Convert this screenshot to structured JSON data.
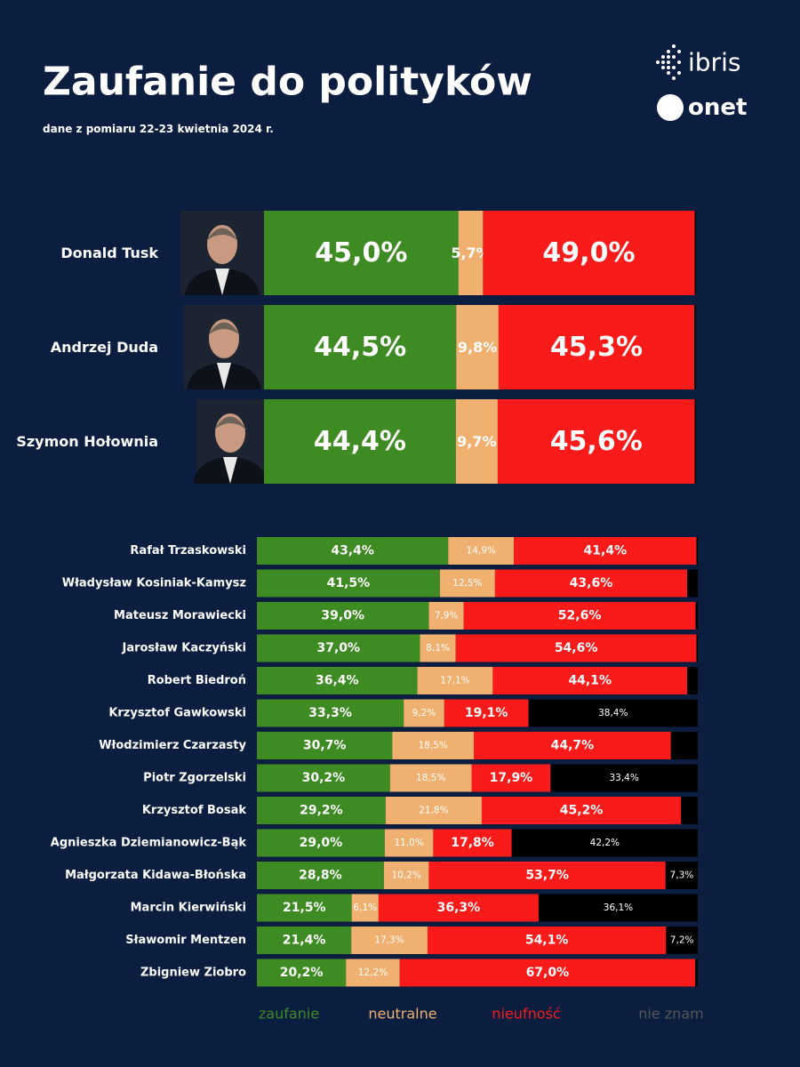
{
  "logos": [
    "ibris",
    "onet"
  ],
  "chart_data": {
    "type": "stacked-bar-horizontal",
    "title": "Zaufanie do polityków",
    "subtitle": "dane z pomiaru 22-23 kwietnia 2024 r.",
    "xlim": [
      0,
      100
    ],
    "categories": [
      "Donald Tusk",
      "Andrzej Duda",
      "Szymon Hołownia",
      "Rafał Trzaskowski",
      "Władysław Kosiniak-Kamysz",
      "Mateusz Morawiecki",
      "Jarosław Kaczyński",
      "Robert Biedroń",
      "Krzysztof Gawkowski",
      "Włodzimierz Czarzasty",
      "Piotr Zgorzelski",
      "Krzysztof Bosak",
      "Agnieszka Dziemianowicz-Bąk",
      "Małgorzata Kidawa-Błońska",
      "Marcin Kierwiński",
      "Sławomir Mentzen",
      "Zbigniew Ziobro"
    ],
    "series": [
      {
        "name": "zaufanie",
        "color": "#3e8a23",
        "text_color": "#3e8a23",
        "values": [
          45.0,
          44.5,
          44.4,
          43.4,
          41.5,
          39.0,
          37.0,
          36.4,
          33.3,
          30.7,
          30.2,
          29.2,
          29.0,
          28.8,
          21.5,
          21.4,
          20.2
        ],
        "value_labels": [
          "45,0%",
          "44,5%",
          "44,4%",
          "43,4%",
          "41,5%",
          "39,0%",
          "37,0%",
          "36,4%",
          "33,3%",
          "30,7%",
          "30,2%",
          "29,2%",
          "29,0%",
          "28,8%",
          "21,5%",
          "21,4%",
          "20,2%"
        ]
      },
      {
        "name": "neutralne",
        "color": "#f0b070",
        "text_color": "#f0b070",
        "values": [
          5.7,
          9.8,
          9.7,
          14.9,
          12.5,
          7.9,
          8.1,
          17.1,
          9.2,
          18.5,
          18.5,
          21.8,
          11.0,
          10.2,
          6.1,
          17.3,
          12.2
        ],
        "value_labels": [
          "5,7%",
          "9,8%",
          "9,7%",
          "14,9%",
          "12,5%",
          "7,9%",
          "8,1%",
          "17,1%",
          "9,2%",
          "18,5%",
          "18,5%",
          "21,8%",
          "11,0%",
          "10,2%",
          "6,1%",
          "17,3%",
          "12,2%"
        ]
      },
      {
        "name": "nieufność",
        "color": "#f91a1a",
        "text_color": "#f91a1a",
        "values": [
          49.0,
          45.3,
          45.6,
          41.4,
          43.6,
          52.6,
          54.6,
          44.1,
          19.1,
          44.7,
          17.9,
          45.2,
          17.8,
          53.7,
          36.3,
          54.1,
          67.0
        ],
        "value_labels": [
          "49,0%",
          "45,3%",
          "45,6%",
          "41,4%",
          "43,6%",
          "52,6%",
          "54,6%",
          "44,1%",
          "19,1%",
          "44,7%",
          "17,9%",
          "45,2%",
          "17,8%",
          "53,7%",
          "36,3%",
          "54,1%",
          "67,0%"
        ]
      },
      {
        "name": "nie znam",
        "color": "#000000",
        "text_color": "#555555",
        "values": [
          0.3,
          0.4,
          0.3,
          0.3,
          2.4,
          0.5,
          0.3,
          2.4,
          38.4,
          6.1,
          33.4,
          3.8,
          42.2,
          7.3,
          36.1,
          7.2,
          0.6
        ],
        "value_labels": [
          null,
          null,
          null,
          null,
          null,
          null,
          null,
          null,
          "38,4%",
          null,
          "33,4%",
          null,
          "42,2%",
          "7,3%",
          "36,1%",
          "7,2%",
          null
        ]
      }
    ]
  }
}
